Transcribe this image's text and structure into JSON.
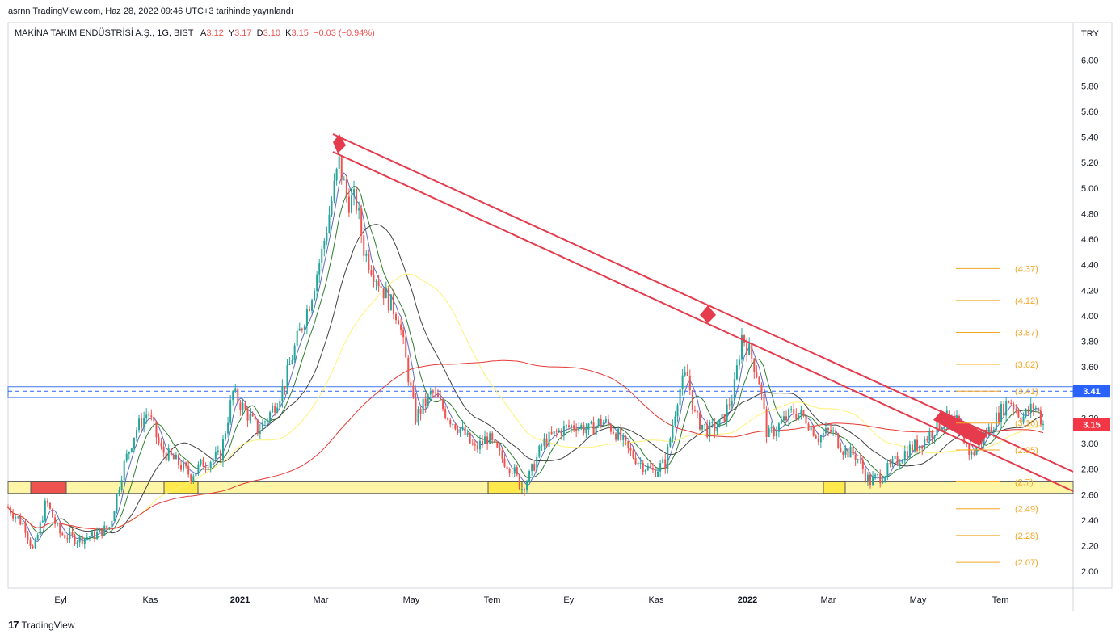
{
  "header": {
    "published": "asrnn TradingView.com, Haz 28, 2022 09:46 UTC+3 tarihinde yayınlandı"
  },
  "legend": {
    "symbol": "MAKİNA TAKIM ENDÜSTRİSİ A.Ş., 1G, BIST",
    "o_label": "A",
    "o_value": "3.12",
    "h_label": "Y",
    "h_value": "3.17",
    "l_label": "D",
    "l_value": "3.10",
    "c_label": "K",
    "c_value": "3.15",
    "change": "−0.03 (−0.94%)"
  },
  "brand": {
    "name": "TradingView",
    "logo": "17"
  },
  "colors": {
    "up": "#26a69a",
    "down": "#ef5350",
    "trendline": "#e53b4d",
    "fib": "#f5a623",
    "support_zone": "#fff59d",
    "resistance": "#5b8ff0",
    "price_tag": "#f23645",
    "level_tag": "#2962ff"
  },
  "chart_data": {
    "type": "candlestick",
    "currency": "TRY",
    "y_range": [
      1.9,
      6.2
    ],
    "y_ticks": [
      "6.00",
      "5.80",
      "5.60",
      "5.40",
      "5.20",
      "5.00",
      "4.80",
      "4.60",
      "4.40",
      "4.20",
      "4.00",
      "3.80",
      "3.60",
      "3.40",
      "3.20",
      "3.00",
      "2.80",
      "2.60",
      "2.40",
      "2.20",
      "2.00"
    ],
    "x_ticks": [
      "Eyl",
      "Kas",
      "2021",
      "Mar",
      "May",
      "Tem",
      "Eyl",
      "Kas",
      "2022",
      "Mar",
      "May",
      "Tem"
    ],
    "x_bold": [
      "2021",
      "2022"
    ],
    "last_price": "3.15",
    "level_price": "3.41",
    "fib_levels": [
      {
        "value": 4.37,
        "label": "(4.37)"
      },
      {
        "value": 4.12,
        "label": "(4.12)"
      },
      {
        "value": 3.87,
        "label": "(3.87)"
      },
      {
        "value": 3.62,
        "label": "(3.62)"
      },
      {
        "value": 3.41,
        "label": "(3.41)"
      },
      {
        "value": 3.16,
        "label": "(3.16)"
      },
      {
        "value": 2.95,
        "label": "(2.95)"
      },
      {
        "value": 2.7,
        "label": "(2.7)"
      },
      {
        "value": 2.49,
        "label": "(2.49)"
      },
      {
        "value": 2.28,
        "label": "(2.28)"
      },
      {
        "value": 2.07,
        "label": "(2.07)"
      }
    ],
    "price_path": [
      [
        0.0,
        2.5
      ],
      [
        0.02,
        2.35
      ],
      [
        0.03,
        2.15
      ],
      [
        0.045,
        2.55
      ],
      [
        0.06,
        2.3
      ],
      [
        0.08,
        2.25
      ],
      [
        0.1,
        2.28
      ],
      [
        0.12,
        2.35
      ],
      [
        0.135,
        2.8
      ],
      [
        0.15,
        3.1
      ],
      [
        0.165,
        3.25
      ],
      [
        0.18,
        2.95
      ],
      [
        0.2,
        2.85
      ],
      [
        0.215,
        2.75
      ],
      [
        0.23,
        2.85
      ],
      [
        0.25,
        2.9
      ],
      [
        0.265,
        3.4
      ],
      [
        0.28,
        3.25
      ],
      [
        0.295,
        3.1
      ],
      [
        0.31,
        3.25
      ],
      [
        0.325,
        3.45
      ],
      [
        0.34,
        3.8
      ],
      [
        0.355,
        4.1
      ],
      [
        0.37,
        4.5
      ],
      [
        0.38,
        4.85
      ],
      [
        0.39,
        5.2
      ],
      [
        0.4,
        4.9
      ],
      [
        0.41,
        4.9
      ],
      [
        0.42,
        4.5
      ],
      [
        0.435,
        4.3
      ],
      [
        0.45,
        4.1
      ],
      [
        0.46,
        4.0
      ],
      [
        0.47,
        3.6
      ],
      [
        0.48,
        3.2
      ],
      [
        0.5,
        3.4
      ],
      [
        0.52,
        3.2
      ],
      [
        0.535,
        3.1
      ],
      [
        0.55,
        2.95
      ],
      [
        0.565,
        3.05
      ],
      [
        0.58,
        2.9
      ],
      [
        0.595,
        2.8
      ],
      [
        0.605,
        2.65
      ],
      [
        0.615,
        2.75
      ],
      [
        0.63,
        3.0
      ],
      [
        0.65,
        3.1
      ],
      [
        0.67,
        3.15
      ],
      [
        0.685,
        3.1
      ],
      [
        0.7,
        3.18
      ],
      [
        0.715,
        3.1
      ],
      [
        0.73,
        2.95
      ],
      [
        0.745,
        2.85
      ],
      [
        0.76,
        2.78
      ],
      [
        0.775,
        2.85
      ],
      [
        0.79,
        3.4
      ],
      [
        0.8,
        3.55
      ],
      [
        0.81,
        3.2
      ],
      [
        0.825,
        3.1
      ],
      [
        0.84,
        3.15
      ],
      [
        0.855,
        3.4
      ],
      [
        0.865,
        3.85
      ],
      [
        0.875,
        3.7
      ],
      [
        0.885,
        3.5
      ],
      [
        0.895,
        3.05
      ],
      [
        0.91,
        3.15
      ],
      [
        0.925,
        3.25
      ],
      [
        0.94,
        3.2
      ],
      [
        0.955,
        3.05
      ],
      [
        0.97,
        3.1
      ],
      [
        0.985,
        2.95
      ],
      [
        1.0,
        2.9
      ],
      [
        1.015,
        2.7
      ],
      [
        1.03,
        2.75
      ],
      [
        1.045,
        2.85
      ],
      [
        1.06,
        2.95
      ],
      [
        1.075,
        3.0
      ],
      [
        1.09,
        3.1
      ],
      [
        1.105,
        3.2
      ],
      [
        1.12,
        3.15
      ],
      [
        1.135,
        2.9
      ],
      [
        1.15,
        3.05
      ],
      [
        1.165,
        3.2
      ],
      [
        1.18,
        3.35
      ],
      [
        1.195,
        3.2
      ],
      [
        1.21,
        3.3
      ],
      [
        1.22,
        3.15
      ]
    ]
  }
}
